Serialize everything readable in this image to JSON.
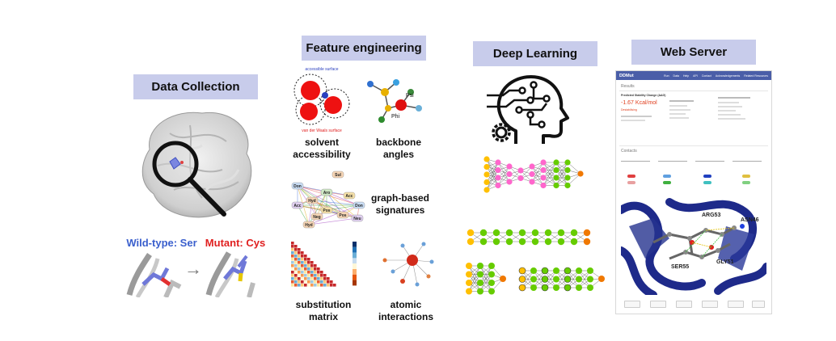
{
  "sections": {
    "data_collection": "Data Collection",
    "feature_engineering": "Feature engineering",
    "deep_learning": "Deep Learning",
    "web_server": "Web Server"
  },
  "data_collection": {
    "wild_type_label": "Wild-type: Ser",
    "mutant_label": "Mutant: Cys",
    "arrow": "→"
  },
  "features": {
    "solvent_accessibility": [
      "solvent",
      "accessibility"
    ],
    "backbone_angles": [
      "backbone",
      "angles"
    ],
    "graph_based": [
      "graph-based",
      "signatures"
    ],
    "substitution": [
      "substitution",
      "matrix"
    ],
    "atomic": [
      "atomic",
      "interactions"
    ],
    "accessible_surface": "accessible surface",
    "vdw_surface": "van der Waals surface",
    "psi": "Psi",
    "phi": "Phi",
    "graph_nodes": [
      "Sul",
      "Don",
      "Aro",
      "Acc",
      "Hyd",
      "Pos",
      "Neg",
      "Don",
      "Acc",
      "Pos",
      "Hyd",
      "Neu"
    ]
  },
  "web_server": {
    "brand": "DDMut",
    "menu": [
      "Run",
      "Data",
      "Help",
      "API",
      "Contact",
      "Acknowledgements",
      "Related Resources"
    ],
    "results_title": "Results",
    "prediction_label": "Predicted Stability Change (ΔΔG)",
    "prediction_value": "-1.67 Kcal/mol",
    "prediction_note": "Destabilising",
    "contacts_title": "Contacts",
    "residue_labels": [
      "ASN46",
      "SER55",
      "ARG53",
      "GLY51"
    ]
  },
  "colors": {
    "header_bg": "#c8cceb",
    "wild_type": "#3a5fcd",
    "mutant": "#e02020",
    "nn_yellow": "#ffc000",
    "nn_green": "#66cc00",
    "nn_orange": "#f07800",
    "nn_pink": "#ff66cc",
    "protein_blue": "#1e2a8a"
  }
}
